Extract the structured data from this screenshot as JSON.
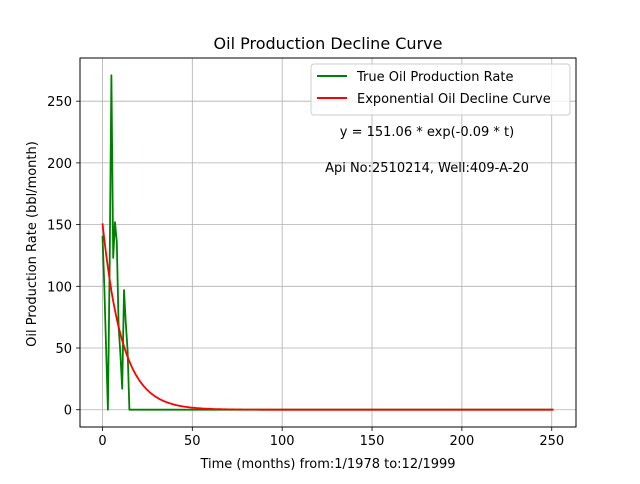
{
  "chart_data": {
    "type": "line",
    "title": "Oil Production Decline Curve",
    "xlabel": "Time (months) from:1/1978 to:12/1999",
    "ylabel": "Oil Production Rate (bbl/month)",
    "xlim": [
      -12.5,
      263.5
    ],
    "ylim": [
      -14,
      285
    ],
    "xticks": [
      0,
      50,
      100,
      150,
      200,
      250
    ],
    "yticks": [
      0,
      50,
      100,
      150,
      200,
      250
    ],
    "grid": true,
    "legend_position": "top-right",
    "annotations": [
      "y = 151.06 * exp(-0.09 * t)",
      "Api No:2510214, Well:409-A-20"
    ],
    "series": [
      {
        "name": "True Oil Production Rate",
        "color": "#008000",
        "x": [
          0,
          1,
          2,
          3,
          4,
          5,
          6,
          7,
          8,
          9,
          10,
          11,
          12,
          13,
          14,
          15,
          20,
          30,
          50,
          100,
          150,
          200,
          251
        ],
        "y": [
          141,
          100,
          50,
          0,
          120,
          271,
          123,
          152,
          136,
          68,
          45,
          17,
          97,
          70,
          48,
          0,
          0,
          0,
          0,
          0,
          0,
          0,
          0
        ]
      },
      {
        "name": "Exponential Oil Decline Curve",
        "color": "#ff0000",
        "function": {
          "a": 151.06,
          "b": 0.09,
          "x_start": 0,
          "x_end": 251
        }
      }
    ]
  }
}
